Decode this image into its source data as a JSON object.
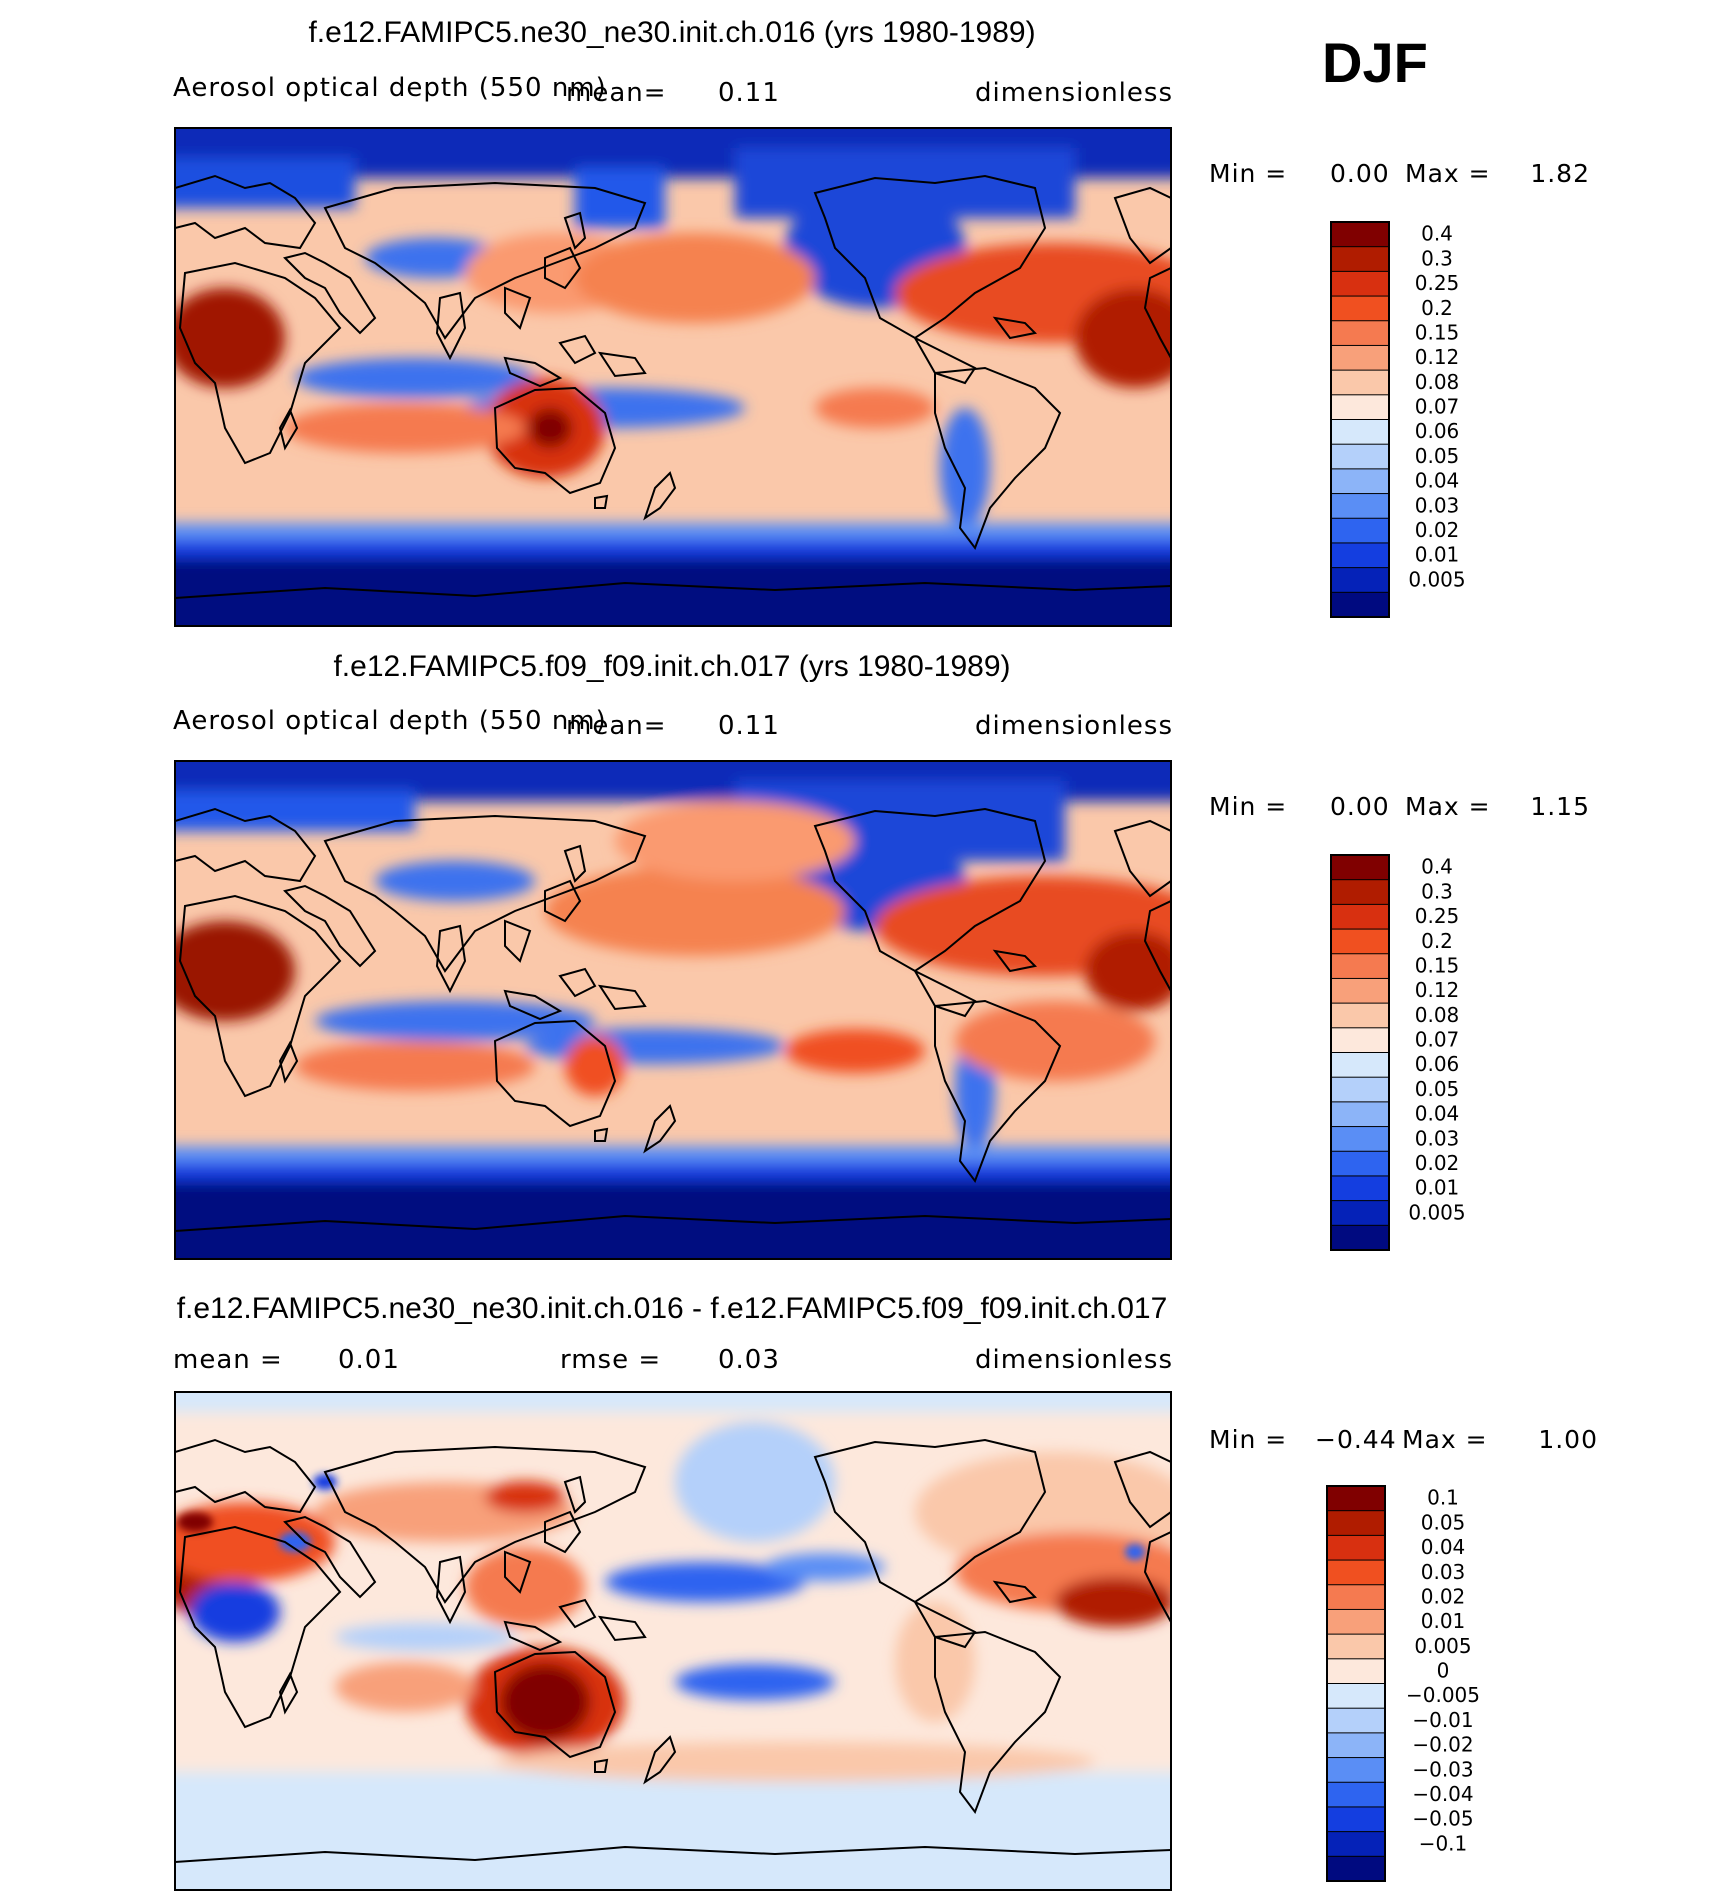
{
  "season": "DJF",
  "chart_data": [
    {
      "type": "heatmap",
      "title": "f.e12.FAMIPC5.ne30_ne30.init.ch.016 (yrs 1980-1989)",
      "variable": "Aerosol optical depth (550 nm)",
      "mean_label": "mean=",
      "mean_value": "0.11",
      "units": "dimensionless",
      "min_label": "Min =",
      "min_value": "0.00",
      "max_label": "Max =",
      "max_value": "1.82",
      "colorbar_levels": [
        "0.4",
        "0.3",
        "0.25",
        "0.2",
        "0.15",
        "0.12",
        "0.08",
        "0.07",
        "0.06",
        "0.05",
        "0.04",
        "0.03",
        "0.02",
        "0.01",
        "0.005"
      ],
      "colorbar_colors": [
        "#800000",
        "#b01c00",
        "#d83010",
        "#f05020",
        "#f57a50",
        "#f8a07a",
        "#fac8aa",
        "#fde8dc",
        "#d6e8fb",
        "#b4d0fa",
        "#8cb4f8",
        "#5a8ef5",
        "#2e64f0",
        "#143ee0",
        "#0522b8",
        "#000a80"
      ]
    },
    {
      "type": "heatmap",
      "title": "f.e12.FAMIPC5.f09_f09.init.ch.017 (yrs 1980-1989)",
      "variable": "Aerosol optical depth (550 nm)",
      "mean_label": "mean=",
      "mean_value": "0.11",
      "units": "dimensionless",
      "min_label": "Min =",
      "min_value": "0.00",
      "max_label": "Max =",
      "max_value": "1.15",
      "colorbar_levels": [
        "0.4",
        "0.3",
        "0.25",
        "0.2",
        "0.15",
        "0.12",
        "0.08",
        "0.07",
        "0.06",
        "0.05",
        "0.04",
        "0.03",
        "0.02",
        "0.01",
        "0.005"
      ],
      "colorbar_colors": [
        "#800000",
        "#b01c00",
        "#d83010",
        "#f05020",
        "#f57a50",
        "#f8a07a",
        "#fac8aa",
        "#fde8dc",
        "#d6e8fb",
        "#b4d0fa",
        "#8cb4f8",
        "#5a8ef5",
        "#2e64f0",
        "#143ee0",
        "#0522b8",
        "#000a80"
      ]
    },
    {
      "type": "heatmap",
      "title": "f.e12.FAMIPC5.ne30_ne30.init.ch.016 - f.e12.FAMIPC5.f09_f09.init.ch.017",
      "mean_label": "mean =",
      "mean_value": "0.01",
      "rmse_label": "rmse =",
      "rmse_value": "0.03",
      "units": "dimensionless",
      "min_label": "Min =",
      "min_value": "−0.44",
      "max_label": "Max =",
      "max_value": "1.00",
      "colorbar_levels": [
        "0.1",
        "0.05",
        "0.04",
        "0.03",
        "0.02",
        "0.01",
        "0.005",
        "0",
        "−0.005",
        "−0.01",
        "−0.02",
        "−0.03",
        "−0.04",
        "−0.05",
        "−0.1"
      ],
      "colorbar_colors": [
        "#800000",
        "#b01c00",
        "#d83010",
        "#f05020",
        "#f57a50",
        "#f8a07a",
        "#fac8aa",
        "#fde8dc",
        "#d6e8fb",
        "#b4d0fa",
        "#8cb4f8",
        "#5a8ef5",
        "#2e64f0",
        "#143ee0",
        "#0522b8",
        "#000a80"
      ]
    }
  ]
}
